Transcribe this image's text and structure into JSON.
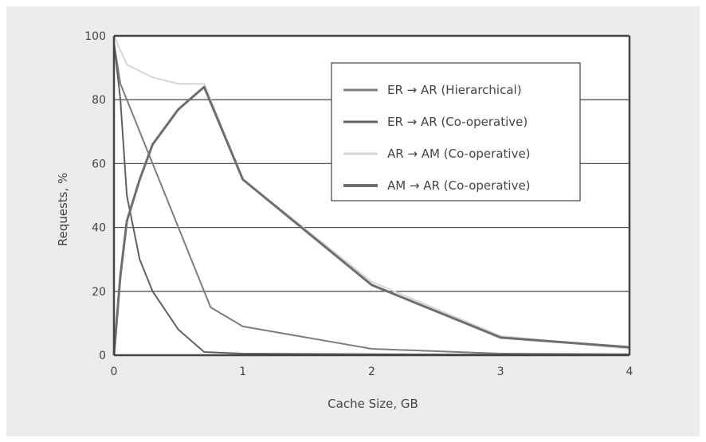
{
  "chart_data": {
    "type": "line",
    "title": "",
    "xlabel": "Cache Size, GB",
    "ylabel": "Requests, %",
    "xlim": [
      0,
      4
    ],
    "ylim": [
      0,
      100
    ],
    "xticks": [
      "0",
      "1",
      "2",
      "3",
      "4"
    ],
    "yticks": [
      "0",
      "20",
      "40",
      "60",
      "80",
      "100"
    ],
    "grid": "horizontal",
    "legend_position": "top-right",
    "series": [
      {
        "name": "ER → AR (Hierarchical)",
        "color": "#7d7d7d",
        "x": [
          0,
          0.05,
          0.15,
          0.3,
          0.5,
          0.7,
          0.75,
          1.0,
          2.0,
          3.0,
          4.0
        ],
        "y": [
          98,
          85,
          75,
          60,
          40,
          20,
          15,
          9,
          2,
          0.5,
          0.3
        ]
      },
      {
        "name": "ER → AR (Co-operative)",
        "color": "#606060",
        "x": [
          0,
          0.05,
          0.1,
          0.2,
          0.3,
          0.5,
          0.7,
          1.0,
          2.0,
          3.0,
          4.0
        ],
        "y": [
          98,
          80,
          50,
          30,
          20,
          8,
          1,
          0.5,
          0.3,
          0.2,
          0.2
        ]
      },
      {
        "name": "AR → AM (Co-operative)",
        "color": "#d6d6d6",
        "x": [
          0,
          0.1,
          0.3,
          0.5,
          0.7,
          1.0,
          2.0,
          3.0,
          4.0
        ],
        "y": [
          100,
          91,
          87,
          85,
          85,
          55,
          23,
          6,
          2
        ]
      },
      {
        "name": "AM → AR (Co-operative)",
        "color": "#6e6e6e",
        "x": [
          0,
          0.05,
          0.1,
          0.2,
          0.3,
          0.5,
          0.7,
          1.0,
          2.0,
          3.0,
          4.0
        ],
        "y": [
          0,
          25,
          42,
          55,
          66,
          77,
          84,
          55,
          22,
          5.5,
          2.5
        ]
      }
    ]
  }
}
